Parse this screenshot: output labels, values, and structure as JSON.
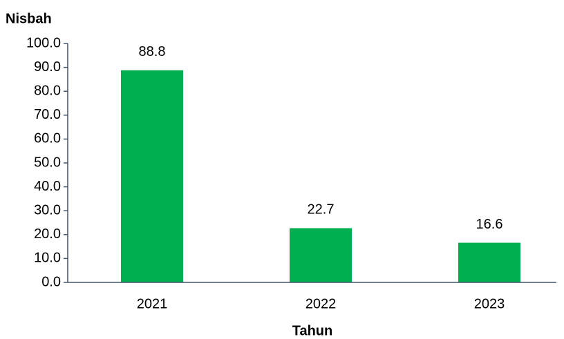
{
  "chart_data": {
    "type": "bar",
    "y_axis_label": "Nisbah",
    "x_axis_label": "Tahun",
    "categories": [
      "2021",
      "2022",
      "2023"
    ],
    "values": [
      88.8,
      22.7,
      16.6
    ],
    "color": "#00b050",
    "ylim": [
      0,
      100
    ],
    "yticks": [
      {
        "value": 0,
        "label": "0.0"
      },
      {
        "value": 10,
        "label": "10.0"
      },
      {
        "value": 20,
        "label": "20.0"
      },
      {
        "value": 30,
        "label": "30.0"
      },
      {
        "value": 40,
        "label": "40.0"
      },
      {
        "value": 50,
        "label": "50.0"
      },
      {
        "value": 60,
        "label": "60.0"
      },
      {
        "value": 70,
        "label": "70.0"
      },
      {
        "value": 80,
        "label": "80.0"
      },
      {
        "value": 90,
        "label": "90.0"
      },
      {
        "value": 100,
        "label": "100.0"
      }
    ],
    "grid": false
  }
}
